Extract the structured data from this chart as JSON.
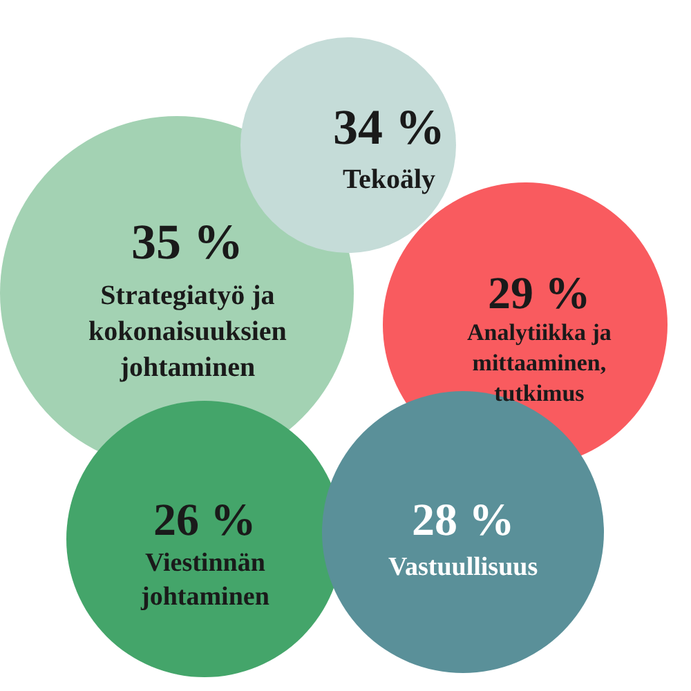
{
  "chart_data": {
    "type": "other",
    "categories": [
      "Strategiatyö ja\nkokonaisuuksien\njohtaminen",
      "Analytiikka ja\nmittaaminen,\ntutkimus",
      "Viestinnän\njohtaminen",
      "Vastuullisuus",
      "Tekoäly"
    ],
    "values": [
      35,
      29,
      26,
      28,
      34
    ],
    "value_labels": [
      "35 %",
      "29 %",
      "26 %",
      "28 %",
      "34 %"
    ],
    "colors": [
      "#a3d2b3",
      "#f95b5f",
      "#44a56a",
      "#5a9099",
      "#c5dcd8"
    ]
  }
}
